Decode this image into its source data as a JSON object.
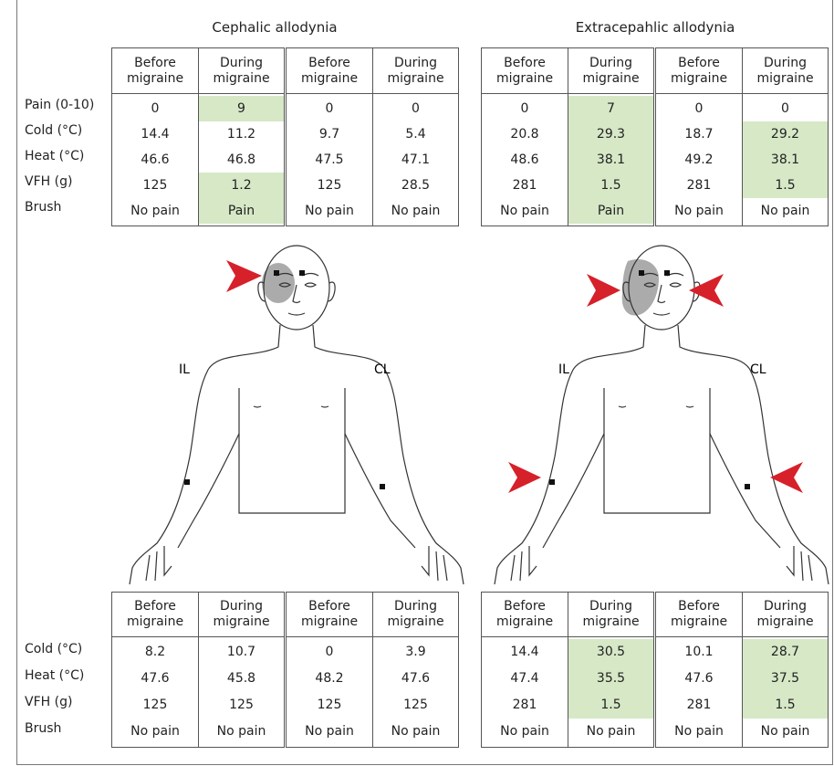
{
  "figure": {
    "panels": [
      {
        "title": "Cephalic allodynia",
        "labels": [
          "IL",
          "CL"
        ]
      },
      {
        "title": "Extracepahlic allodynia",
        "labels": [
          "IL",
          "CL"
        ]
      }
    ],
    "highlight_color": "#d6e8c6",
    "top_table": {
      "row_labels": [
        "Pain (0-10)",
        "Cold (°C)",
        "Heat (°C)",
        "VFH (g)",
        "Brush"
      ],
      "groups": [
        {
          "headers": [
            "Before migraine",
            "During migraine"
          ],
          "rows": [
            [
              0,
              9
            ],
            [
              14.4,
              11.2
            ],
            [
              46.6,
              46.8
            ],
            [
              125,
              1.2
            ],
            [
              "No pain",
              "Pain"
            ]
          ],
          "highlighted": [
            [
              0,
              1
            ],
            [
              3,
              1
            ],
            [
              4,
              1
            ]
          ]
        },
        {
          "headers": [
            "Before migraine",
            "During migraine"
          ],
          "rows": [
            [
              0,
              0
            ],
            [
              9.7,
              5.4
            ],
            [
              47.5,
              47.1
            ],
            [
              125,
              28.5
            ],
            [
              "No pain",
              "No pain"
            ]
          ],
          "highlighted": []
        },
        {
          "headers": [
            "Before migraine",
            "During migraine"
          ],
          "rows": [
            [
              0,
              7
            ],
            [
              20.8,
              29.3
            ],
            [
              48.6,
              38.1
            ],
            [
              281,
              1.5
            ],
            [
              "No pain",
              "Pain"
            ]
          ],
          "highlighted": [
            [
              0,
              1
            ],
            [
              1,
              1
            ],
            [
              2,
              1
            ],
            [
              3,
              1
            ],
            [
              4,
              1
            ]
          ]
        },
        {
          "headers": [
            "Before migraine",
            "During migraine"
          ],
          "rows": [
            [
              0,
              0
            ],
            [
              18.7,
              29.2
            ],
            [
              49.2,
              38.1
            ],
            [
              281,
              1.5
            ],
            [
              "No pain",
              "No pain"
            ]
          ],
          "highlighted": [
            [
              1,
              1
            ],
            [
              2,
              1
            ],
            [
              3,
              1
            ]
          ]
        }
      ]
    },
    "bottom_table": {
      "row_labels": [
        "Cold (°C)",
        "Heat (°C)",
        "VFH (g)",
        "Brush"
      ],
      "groups": [
        {
          "headers": [
            "Before migraine",
            "During migraine"
          ],
          "rows": [
            [
              8.2,
              10.7
            ],
            [
              47.6,
              45.8
            ],
            [
              125,
              125
            ],
            [
              "No pain",
              "No pain"
            ]
          ],
          "highlighted": []
        },
        {
          "headers": [
            "Before migraine",
            "During migraine"
          ],
          "rows": [
            [
              0,
              3.9
            ],
            [
              48.2,
              47.6
            ],
            [
              125,
              125
            ],
            [
              "No pain",
              "No pain"
            ]
          ],
          "highlighted": []
        },
        {
          "headers": [
            "Before migraine",
            "During migraine"
          ],
          "rows": [
            [
              14.4,
              30.5
            ],
            [
              47.4,
              35.5
            ],
            [
              281,
              1.5
            ],
            [
              "No pain",
              "No pain"
            ]
          ],
          "highlighted": [
            [
              0,
              1
            ],
            [
              1,
              1
            ],
            [
              2,
              1
            ]
          ]
        },
        {
          "headers": [
            "Before migraine",
            "During migraine"
          ],
          "rows": [
            [
              10.1,
              28.7
            ],
            [
              47.6,
              37.5
            ],
            [
              281,
              1.5
            ],
            [
              "No pain",
              "No pain"
            ]
          ],
          "highlighted": [
            [
              0,
              1
            ],
            [
              1,
              1
            ],
            [
              2,
              1
            ]
          ]
        }
      ]
    }
  }
}
